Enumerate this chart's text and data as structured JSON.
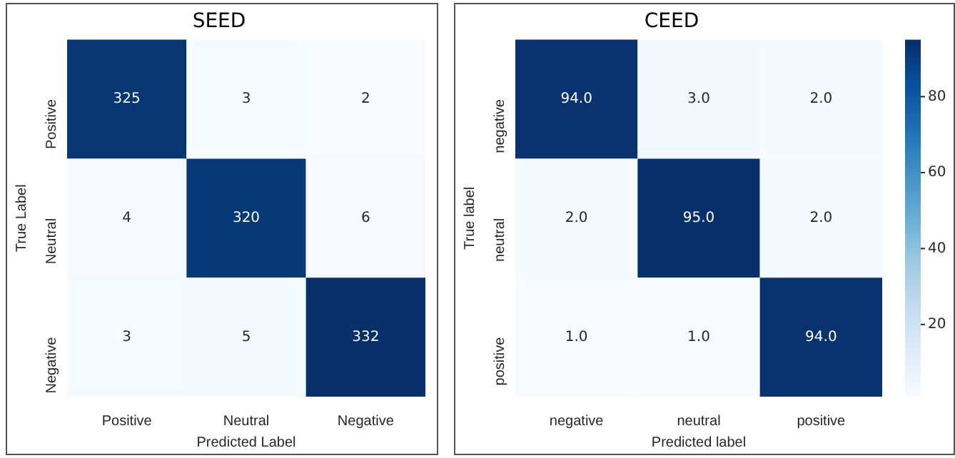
{
  "chart_data": [
    {
      "type": "heatmap",
      "title": "SEED",
      "xlabel": "Predicted Label",
      "ylabel": "True Label",
      "categories": [
        "Positive",
        "Neutral",
        "Negative"
      ],
      "y_categories": [
        "Positive",
        "Neutral",
        "Negative"
      ],
      "cells": [
        [
          325,
          3,
          2
        ],
        [
          4,
          320,
          6
        ],
        [
          3,
          5,
          332
        ]
      ],
      "data_labels": true
    },
    {
      "type": "heatmap",
      "title": "CEED",
      "xlabel": "Predicted label",
      "ylabel": "True label",
      "categories": [
        "negative",
        "neutral",
        "positive"
      ],
      "y_categories": [
        "negative",
        "neutral",
        "positive"
      ],
      "cells": [
        [
          94,
          3,
          2
        ],
        [
          2,
          95,
          2
        ],
        [
          1,
          1,
          94
        ]
      ],
      "cell_labels": [
        [
          "94.0",
          "3.0",
          "2.0"
        ],
        [
          "2.0",
          "95.0",
          "2.0"
        ],
        [
          "1.0",
          "1.0",
          "94.0"
        ]
      ],
      "clim": [
        1,
        95
      ],
      "cticks": [
        20,
        40,
        60,
        80
      ]
    }
  ]
}
